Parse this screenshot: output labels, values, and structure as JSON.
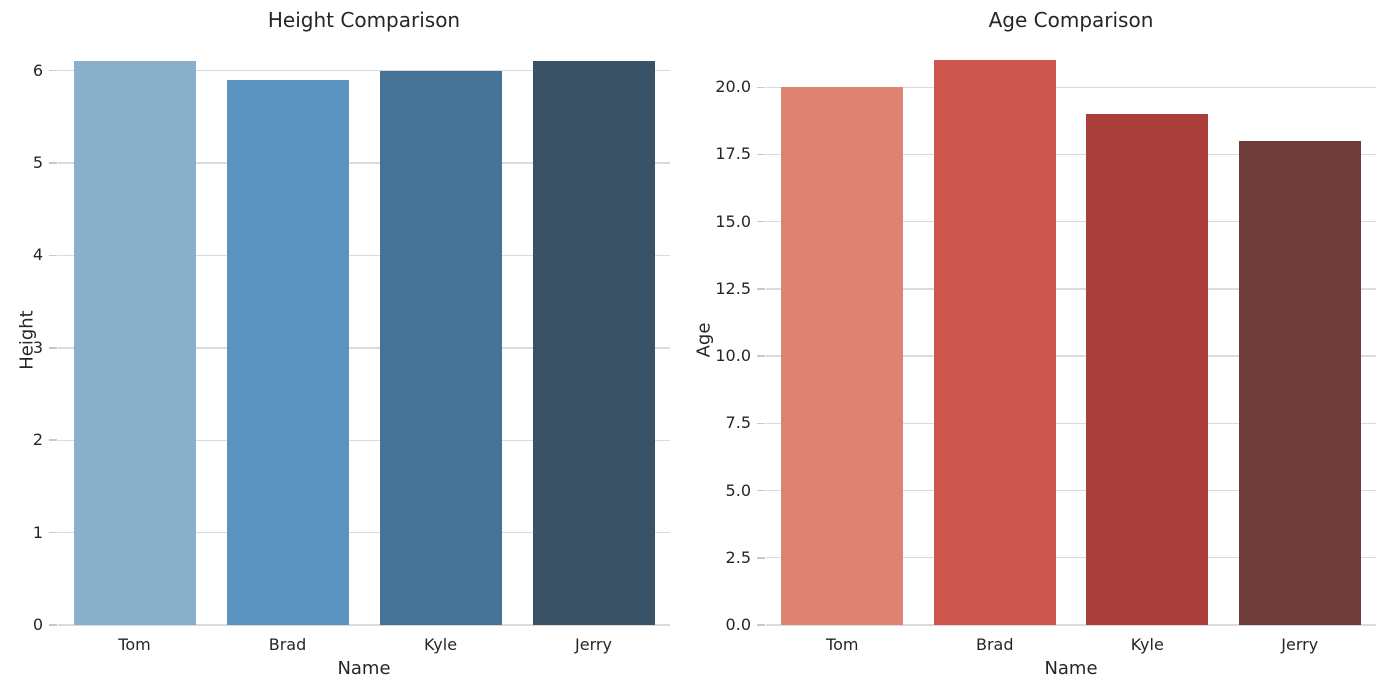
{
  "figure": {
    "background_color": "#ffffff",
    "text_color": "#262626",
    "grid_color": "#dbdbdb",
    "tick_mark_color": "#c9c9c9"
  },
  "chart_data": [
    {
      "type": "bar",
      "title": "Height Comparison",
      "xlabel": "Name",
      "ylabel": "Height",
      "categories": [
        "Tom",
        "Brad",
        "Kyle",
        "Jerry"
      ],
      "values": [
        6.1,
        5.9,
        6.0,
        6.1
      ],
      "bar_colors": [
        "#89AFCA",
        "#5C92BE",
        "#447396",
        "#3A5266"
      ],
      "ylim": [
        0,
        6.17
      ],
      "ytick_values": [
        0,
        1,
        2,
        3,
        4,
        5,
        6
      ],
      "ytick_labels": [
        "0",
        "1",
        "2",
        "3",
        "4",
        "5",
        "6"
      ],
      "grid": "horizontal",
      "legend": "none"
    },
    {
      "type": "bar",
      "title": "Age Comparison",
      "xlabel": "Name",
      "ylabel": "Age",
      "categories": [
        "Tom",
        "Brad",
        "Kyle",
        "Jerry"
      ],
      "values": [
        20,
        21,
        19,
        18
      ],
      "bar_colors": [
        "#DE8271",
        "#CC564E",
        "#A93E3B",
        "#703C39"
      ],
      "ylim": [
        0,
        21.2
      ],
      "ytick_values": [
        0,
        2.5,
        5,
        7.5,
        10,
        12.5,
        15,
        17.5,
        20
      ],
      "ytick_labels": [
        "0.0",
        "2.5",
        "5.0",
        "7.5",
        "10.0",
        "12.5",
        "15.0",
        "17.5",
        "20.0"
      ],
      "grid": "horizontal",
      "legend": "none"
    }
  ]
}
